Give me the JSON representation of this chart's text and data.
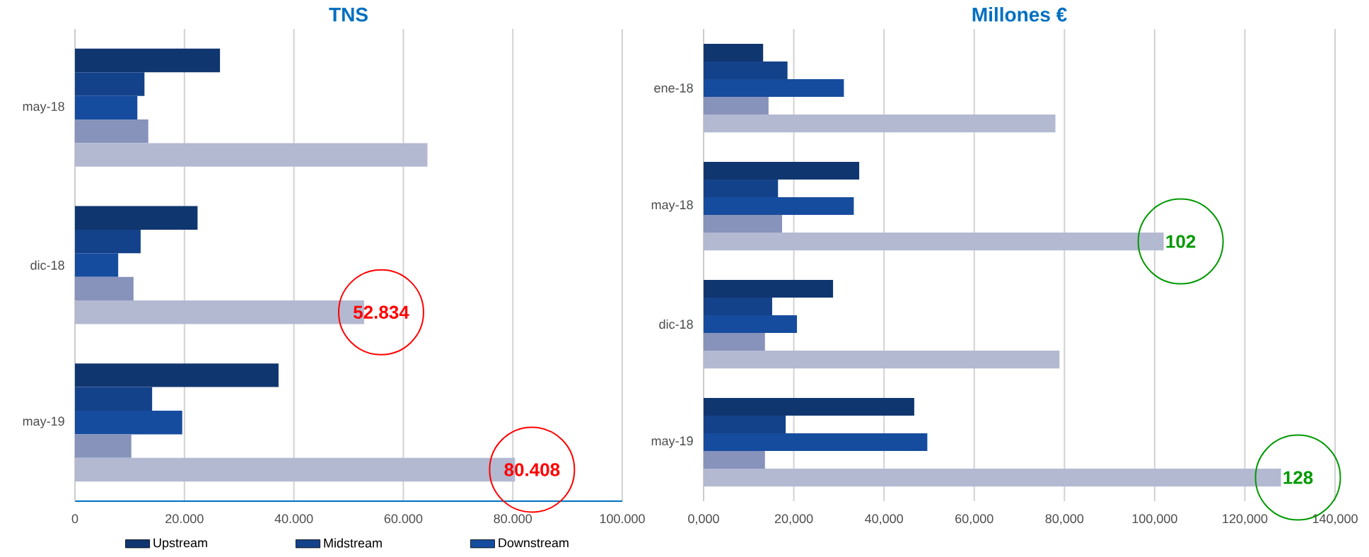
{
  "chart_data": [
    {
      "type": "bar",
      "orientation": "horizontal",
      "title": "TNS",
      "categories": [
        "may-18",
        "dic-18",
        "may-19"
      ],
      "series": [
        {
          "name": "Upstream",
          "color": "#10366f",
          "values": [
            26500,
            22400,
            37200
          ]
        },
        {
          "name": "Midstream",
          "color": "#14428a",
          "values": [
            12700,
            12000,
            14100
          ]
        },
        {
          "name": "Downstream",
          "color": "#164c9e",
          "values": [
            11400,
            7900,
            19600
          ]
        },
        {
          "color": "#8793bb",
          "values": [
            13400,
            10700,
            10300
          ]
        },
        {
          "color": "#b3b9d1",
          "values": [
            64400,
            52834,
            80408
          ],
          "value_labels": [
            null,
            "52.834",
            "80.408"
          ]
        }
      ],
      "xlim": [
        0,
        100000
      ],
      "xticks": [
        0,
        {
          "value": 20000,
          "label": "20.000"
        },
        {
          "value": 40000,
          "label": "40.000"
        },
        {
          "value": 60000,
          "label": "60.000"
        },
        {
          "value": 80000,
          "label": "80.000"
        },
        {
          "value": 100000,
          "label": "100.000"
        }
      ],
      "grid": "x",
      "legend": "bottom"
    },
    {
      "type": "bar",
      "orientation": "horizontal",
      "title": "Millones €",
      "categories": [
        "ene-18",
        "may-18",
        "dic-18",
        "may-19"
      ],
      "series": [
        {
          "color": "#10366f",
          "values": [
            13.2,
            34.5,
            28.7,
            46.7
          ]
        },
        {
          "color": "#14428a",
          "values": [
            18.6,
            16.5,
            15.2,
            18.2
          ]
        },
        {
          "color": "#164c9e",
          "values": [
            31.1,
            33.3,
            20.7,
            49.6
          ]
        },
        {
          "color": "#8793bb",
          "values": [
            14.4,
            17.4,
            13.6,
            13.6
          ]
        },
        {
          "color": "#b3b9d1",
          "values": [
            78.0,
            102,
            78.9,
            128
          ],
          "value_labels": [
            null,
            "102",
            null,
            "128"
          ]
        }
      ],
      "xlim": [
        0,
        140
      ],
      "xticks": [
        {
          "value": 0,
          "label": "0,000"
        },
        {
          "value": 20,
          "label": "20,000"
        },
        {
          "value": 40,
          "label": "40,000"
        },
        {
          "value": 60,
          "label": "60,000"
        },
        {
          "value": 80,
          "label": "80,000"
        },
        {
          "value": 100,
          "label": "100,000"
        },
        {
          "value": 120,
          "label": "120,000"
        },
        {
          "value": 140,
          "label": "140,000"
        }
      ],
      "grid": "x"
    }
  ]
}
